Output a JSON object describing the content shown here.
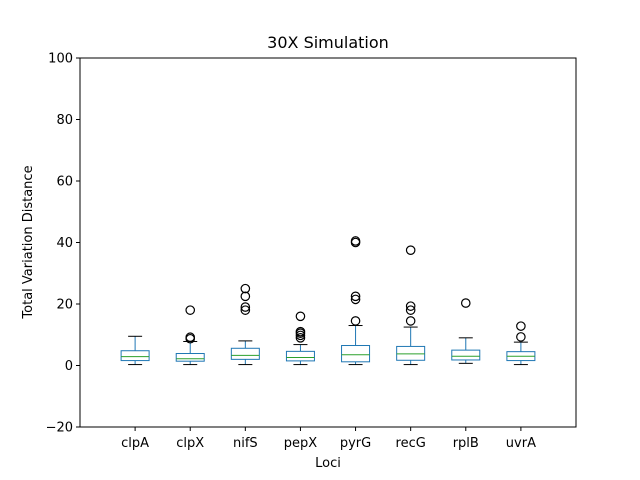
{
  "chart_data": {
    "type": "box",
    "title": "30X Simulation",
    "xlabel": "Loci",
    "ylabel": "Total Variation Distance",
    "ylim": [
      -20,
      100
    ],
    "yticks": [
      "−20",
      "0",
      "20",
      "40",
      "60",
      "80",
      "100"
    ],
    "ytick_values": [
      -20,
      0,
      20,
      40,
      60,
      80,
      100
    ],
    "grid": false,
    "categories": [
      "clpA",
      "clpX",
      "nifS",
      "pepX",
      "pyrG",
      "recG",
      "rplB",
      "uvrA"
    ],
    "boxes": [
      {
        "category": "clpA",
        "whisker_low": 0.3,
        "q1": 1.6,
        "median": 2.9,
        "q3": 4.8,
        "whisker_high": 9.5,
        "outliers": []
      },
      {
        "category": "clpX",
        "whisker_low": 0.3,
        "q1": 1.4,
        "median": 2.2,
        "q3": 3.9,
        "whisker_high": 7.8,
        "outliers": [
          8.7,
          9.2,
          18.0
        ]
      },
      {
        "category": "nifS",
        "whisker_low": 0.3,
        "q1": 2.0,
        "median": 3.3,
        "q3": 5.6,
        "whisker_high": 8.0,
        "outliers": [
          18.0,
          19.0,
          22.5,
          25.0
        ]
      },
      {
        "category": "pepX",
        "whisker_low": 0.3,
        "q1": 1.5,
        "median": 2.6,
        "q3": 4.6,
        "whisker_high": 6.8,
        "outliers": [
          9.0,
          9.8,
          10.5,
          11.0,
          16.0
        ]
      },
      {
        "category": "pyrG",
        "whisker_low": 0.3,
        "q1": 1.2,
        "median": 3.5,
        "q3": 6.5,
        "whisker_high": 13.0,
        "outliers": [
          14.5,
          21.5,
          22.5,
          40.0,
          40.5
        ]
      },
      {
        "category": "recG",
        "whisker_low": 0.3,
        "q1": 1.7,
        "median": 3.8,
        "q3": 6.2,
        "whisker_high": 12.5,
        "outliers": [
          14.5,
          18.0,
          19.3,
          37.5
        ]
      },
      {
        "category": "rplB",
        "whisker_low": 0.7,
        "q1": 1.8,
        "median": 3.0,
        "q3": 5.0,
        "whisker_high": 9.0,
        "outliers": [
          20.3
        ]
      },
      {
        "category": "uvrA",
        "whisker_low": 0.3,
        "q1": 1.6,
        "median": 3.0,
        "q3": 4.5,
        "whisker_high": 7.6,
        "outliers": [
          9.3,
          12.8
        ]
      }
    ],
    "colors": {
      "box": "#1f77b4",
      "median": "#2ca02c",
      "whisker": "#000000",
      "outlier": "#000000"
    }
  }
}
